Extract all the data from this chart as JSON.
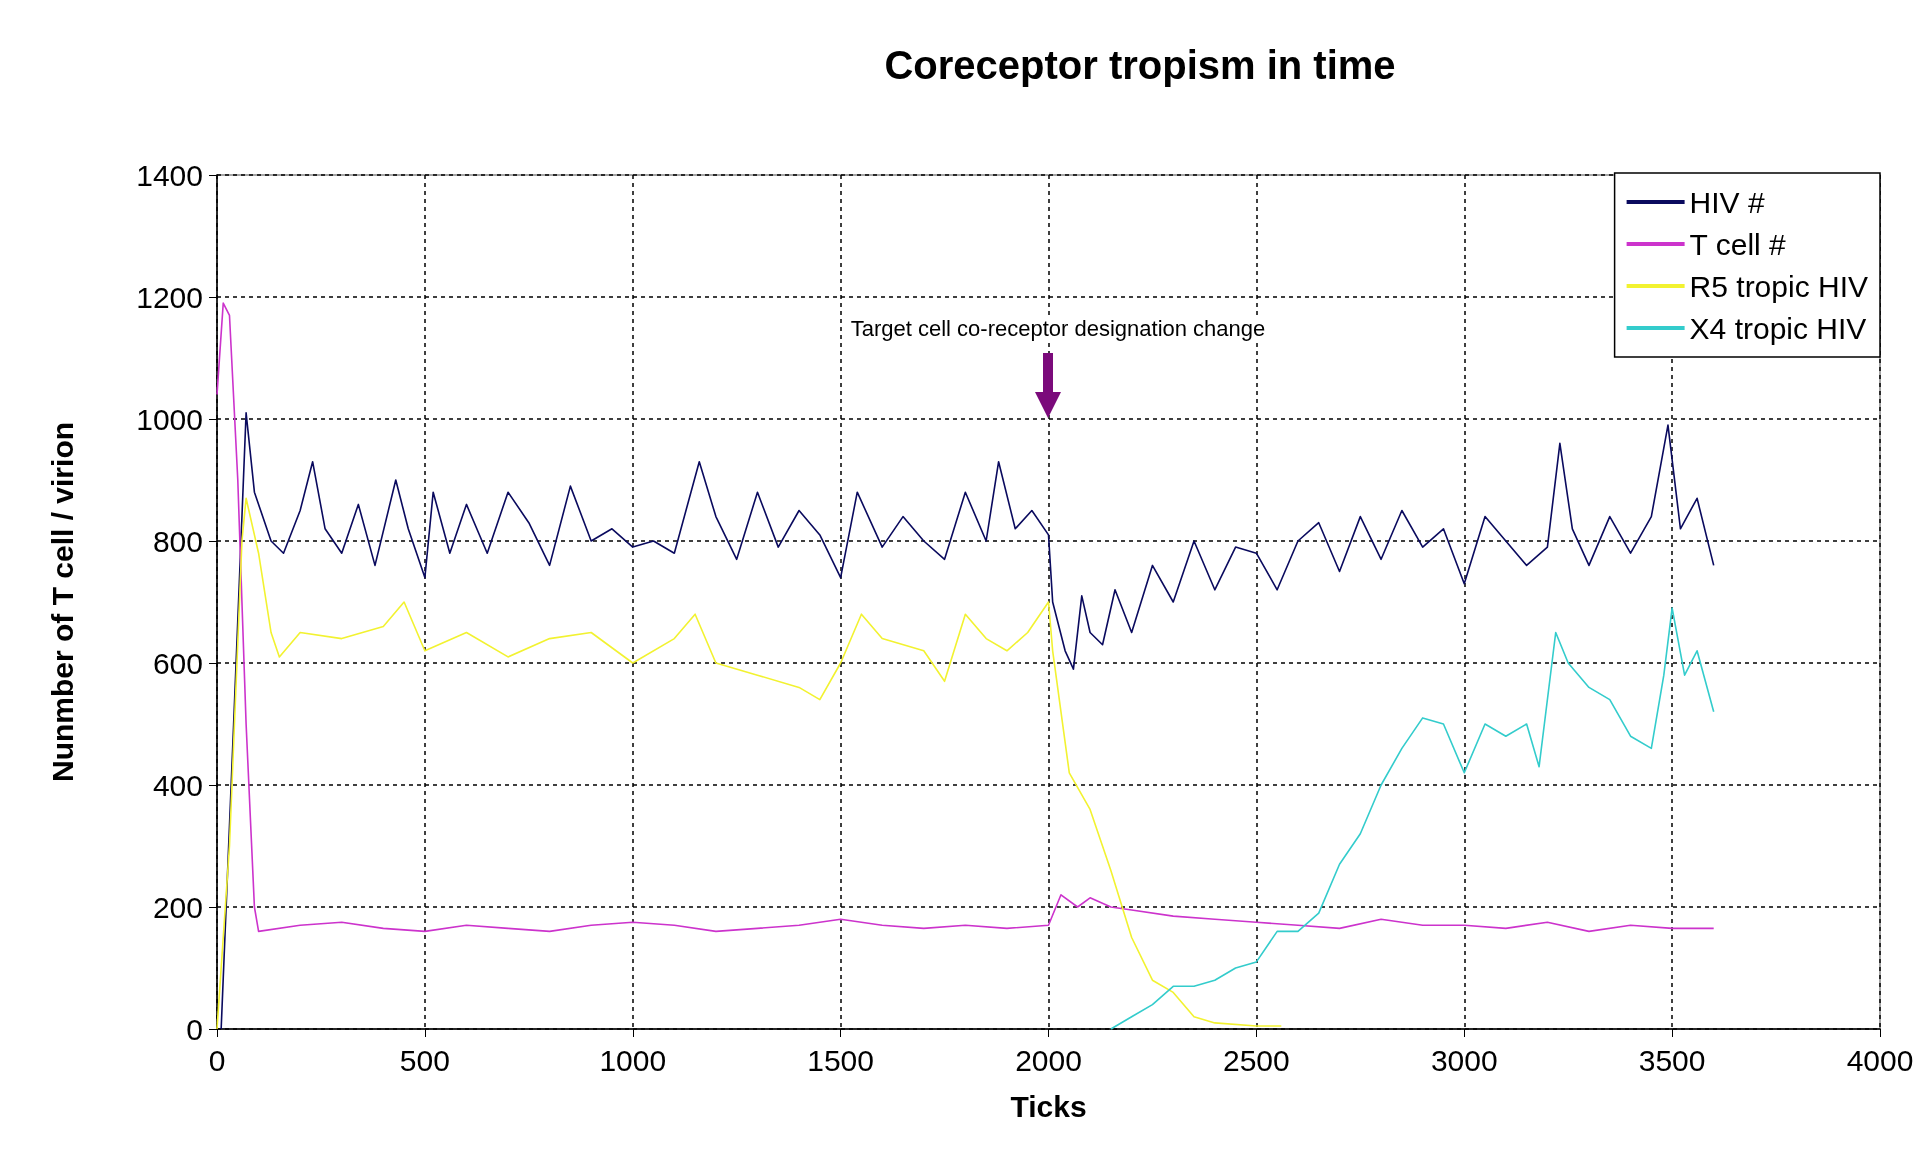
{
  "chart_data": {
    "type": "line",
    "title": "Coreceptor tropism in time",
    "xlabel": "Ticks",
    "ylabel": "Nunmber of T cell / virion",
    "xlim": [
      0,
      4000
    ],
    "xticks": [
      0,
      500,
      1000,
      1500,
      2000,
      2500,
      3000,
      3500,
      4000
    ],
    "ylim": [
      0,
      1400
    ],
    "yticks": [
      0,
      200,
      400,
      600,
      800,
      1000,
      1200,
      1400
    ],
    "grid": true,
    "legend": "top right",
    "annotations": [
      "Target cell co-receptor designation change"
    ],
    "series": [
      {
        "name": "HIV #",
        "color": "#0a0a5e",
        "x": [
          10,
          40,
          70,
          90,
          130,
          160,
          200,
          230,
          260,
          300,
          340,
          380,
          430,
          460,
          500,
          520,
          560,
          600,
          650,
          700,
          750,
          800,
          850,
          900,
          950,
          1000,
          1050,
          1100,
          1160,
          1200,
          1250,
          1300,
          1350,
          1400,
          1450,
          1500,
          1540,
          1600,
          1650,
          1700,
          1750,
          1800,
          1850,
          1880,
          1920,
          1960,
          2000,
          2010,
          2040,
          2060,
          2080,
          2100,
          2130,
          2160,
          2200,
          2250,
          2300,
          2350,
          2400,
          2450,
          2500,
          2550,
          2600,
          2650,
          2700,
          2750,
          2800,
          2850,
          2900,
          2950,
          3000,
          3050,
          3100,
          3150,
          3200,
          3230,
          3260,
          3300,
          3350,
          3400,
          3450,
          3490,
          3520,
          3560,
          3600
        ],
        "values": [
          0,
          500,
          1010,
          880,
          800,
          780,
          850,
          930,
          820,
          780,
          860,
          760,
          900,
          820,
          740,
          880,
          780,
          860,
          780,
          880,
          830,
          760,
          890,
          800,
          820,
          790,
          800,
          780,
          930,
          840,
          770,
          880,
          790,
          850,
          810,
          740,
          880,
          790,
          840,
          800,
          770,
          880,
          800,
          930,
          820,
          850,
          810,
          700,
          620,
          590,
          710,
          650,
          630,
          720,
          650,
          760,
          700,
          800,
          720,
          790,
          780,
          720,
          800,
          830,
          750,
          840,
          770,
          850,
          790,
          820,
          730,
          840,
          800,
          760,
          790,
          960,
          820,
          760,
          840,
          780,
          840,
          990,
          820,
          870,
          760
        ]
      },
      {
        "name": "T cell #",
        "color": "#cc33cc",
        "x": [
          0,
          15,
          30,
          50,
          70,
          90,
          100,
          200,
          300,
          400,
          500,
          600,
          700,
          800,
          900,
          1000,
          1100,
          1200,
          1300,
          1400,
          1500,
          1600,
          1700,
          1800,
          1900,
          2000,
          2030,
          2070,
          2100,
          2150,
          2200,
          2300,
          2400,
          2500,
          2600,
          2700,
          2800,
          2900,
          3000,
          3100,
          3200,
          3300,
          3400,
          3500,
          3600
        ],
        "values": [
          1040,
          1190,
          1170,
          900,
          500,
          200,
          160,
          170,
          175,
          165,
          160,
          170,
          165,
          160,
          170,
          175,
          170,
          160,
          165,
          170,
          180,
          170,
          165,
          170,
          165,
          170,
          220,
          200,
          215,
          200,
          195,
          185,
          180,
          175,
          170,
          165,
          180,
          170,
          170,
          165,
          175,
          160,
          170,
          165,
          165
        ]
      },
      {
        "name": "R5 tropic HIV",
        "color": "#f2f230",
        "x": [
          0,
          30,
          60,
          70,
          100,
          130,
          150,
          200,
          300,
          400,
          450,
          500,
          600,
          700,
          800,
          900,
          1000,
          1100,
          1150,
          1200,
          1300,
          1400,
          1450,
          1500,
          1550,
          1600,
          1700,
          1750,
          1800,
          1850,
          1900,
          1950,
          2000,
          2010,
          2050,
          2100,
          2150,
          2200,
          2250,
          2300,
          2350,
          2400,
          2500,
          2560
        ],
        "values": [
          0,
          300,
          800,
          870,
          780,
          650,
          610,
          650,
          640,
          660,
          700,
          620,
          650,
          610,
          640,
          650,
          600,
          640,
          680,
          600,
          580,
          560,
          540,
          600,
          680,
          640,
          620,
          570,
          680,
          640,
          620,
          650,
          700,
          620,
          420,
          360,
          260,
          150,
          80,
          60,
          20,
          10,
          5,
          5
        ]
      },
      {
        "name": "X4 tropic HIV",
        "color": "#33cccc",
        "x": [
          2150,
          2200,
          2250,
          2300,
          2350,
          2400,
          2450,
          2500,
          2550,
          2600,
          2650,
          2700,
          2750,
          2800,
          2850,
          2900,
          2950,
          3000,
          3050,
          3100,
          3150,
          3180,
          3220,
          3250,
          3300,
          3350,
          3400,
          3450,
          3480,
          3500,
          3530,
          3560,
          3600
        ],
        "values": [
          0,
          20,
          40,
          70,
          70,
          80,
          100,
          110,
          160,
          160,
          190,
          270,
          320,
          400,
          460,
          510,
          500,
          420,
          500,
          480,
          500,
          430,
          650,
          600,
          560,
          540,
          480,
          460,
          580,
          690,
          580,
          620,
          520
        ]
      }
    ]
  }
}
